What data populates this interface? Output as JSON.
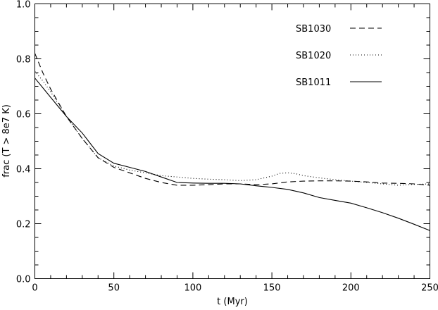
{
  "chart_data": {
    "type": "line",
    "title": "",
    "xlabel": "t (Myr)",
    "ylabel": "frac (T > 8e7 K)",
    "xlim": [
      0,
      250
    ],
    "ylim": [
      0.0,
      1.0
    ],
    "x_ticks": [
      "0",
      "50",
      "100",
      "150",
      "200",
      "250"
    ],
    "y_ticks": [
      "0.0",
      "0.2",
      "0.4",
      "0.6",
      "0.8",
      "1.0"
    ],
    "grid": false,
    "legend_position": "top-right",
    "series": [
      {
        "name": "SB1030",
        "style": "dashed",
        "x": [
          0,
          5,
          10,
          20,
          30,
          40,
          50,
          60,
          70,
          80,
          90,
          100,
          110,
          120,
          130,
          140,
          150,
          160,
          170,
          180,
          190,
          200,
          210,
          220,
          230,
          240,
          250
        ],
        "y": [
          0.82,
          0.75,
          0.69,
          0.59,
          0.51,
          0.44,
          0.405,
          0.385,
          0.365,
          0.35,
          0.34,
          0.34,
          0.342,
          0.345,
          0.345,
          0.342,
          0.345,
          0.352,
          0.355,
          0.356,
          0.356,
          0.355,
          0.352,
          0.348,
          0.347,
          0.345,
          0.34
        ]
      },
      {
        "name": "SB1020",
        "style": "dotted",
        "x": [
          0,
          5,
          10,
          20,
          30,
          40,
          50,
          60,
          70,
          80,
          90,
          100,
          110,
          120,
          130,
          140,
          150,
          155,
          160,
          165,
          170,
          180,
          190,
          200,
          210,
          220,
          230,
          240,
          250
        ],
        "y": [
          0.755,
          0.72,
          0.68,
          0.59,
          0.51,
          0.44,
          0.41,
          0.395,
          0.385,
          0.375,
          0.37,
          0.365,
          0.362,
          0.36,
          0.357,
          0.36,
          0.373,
          0.383,
          0.385,
          0.382,
          0.375,
          0.367,
          0.36,
          0.355,
          0.35,
          0.345,
          0.34,
          0.343,
          0.345
        ]
      },
      {
        "name": "SB1011",
        "style": "solid",
        "x": [
          0,
          10,
          20,
          30,
          40,
          50,
          60,
          70,
          80,
          90,
          100,
          110,
          120,
          130,
          140,
          150,
          160,
          170,
          180,
          190,
          200,
          210,
          220,
          230,
          240,
          250
        ],
        "y": [
          0.73,
          0.66,
          0.59,
          0.53,
          0.455,
          0.42,
          0.405,
          0.39,
          0.37,
          0.35,
          0.348,
          0.347,
          0.347,
          0.345,
          0.338,
          0.332,
          0.325,
          0.312,
          0.295,
          0.285,
          0.275,
          0.258,
          0.24,
          0.22,
          0.198,
          0.175
        ]
      }
    ]
  }
}
